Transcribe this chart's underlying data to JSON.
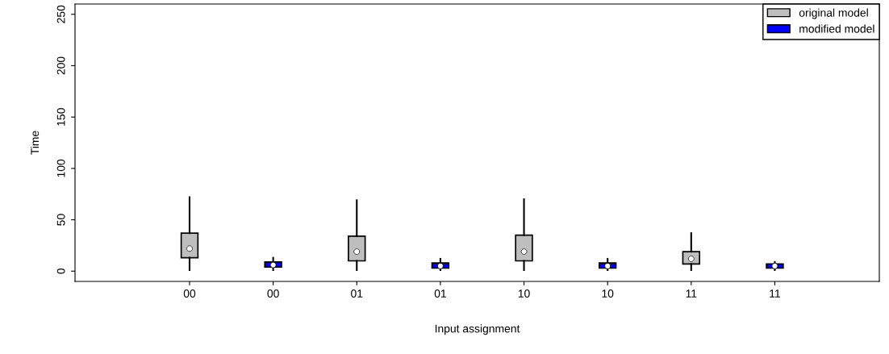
{
  "chart_data": {
    "type": "box",
    "xlabel": "Input assignment",
    "ylabel": "Time",
    "categories": [
      "00",
      "00",
      "01",
      "01",
      "10",
      "10",
      "11",
      "11"
    ],
    "ylim": [
      -10,
      260
    ],
    "yticks": [
      0,
      50,
      100,
      150,
      200,
      250
    ],
    "grid": false,
    "legend": "top right",
    "series": [
      {
        "name": "original model",
        "color": "#bebebe",
        "boxes": [
          {
            "low": 1,
            "q1": 13,
            "median": 22,
            "q3": 37,
            "high": 72
          },
          null,
          {
            "low": 1,
            "q1": 10,
            "median": 19,
            "q3": 34,
            "high": 69
          },
          null,
          {
            "low": 1,
            "q1": 10,
            "median": 19,
            "q3": 35,
            "high": 70
          },
          null,
          {
            "low": 1,
            "q1": 7,
            "median": 12,
            "q3": 19,
            "high": 37
          },
          null
        ]
      },
      {
        "name": "modified model",
        "color": "#0000ff",
        "boxes": [
          null,
          {
            "low": 1,
            "q1": 4,
            "median": 6,
            "q3": 9,
            "high": 13
          },
          null,
          {
            "low": 1,
            "q1": 3,
            "median": 5,
            "q3": 8,
            "high": 12
          },
          null,
          {
            "low": 1,
            "q1": 3,
            "median": 5,
            "q3": 8,
            "high": 12
          },
          null,
          {
            "low": 1,
            "q1": 3,
            "median": 5,
            "q3": 7,
            "high": 9
          }
        ]
      }
    ]
  }
}
